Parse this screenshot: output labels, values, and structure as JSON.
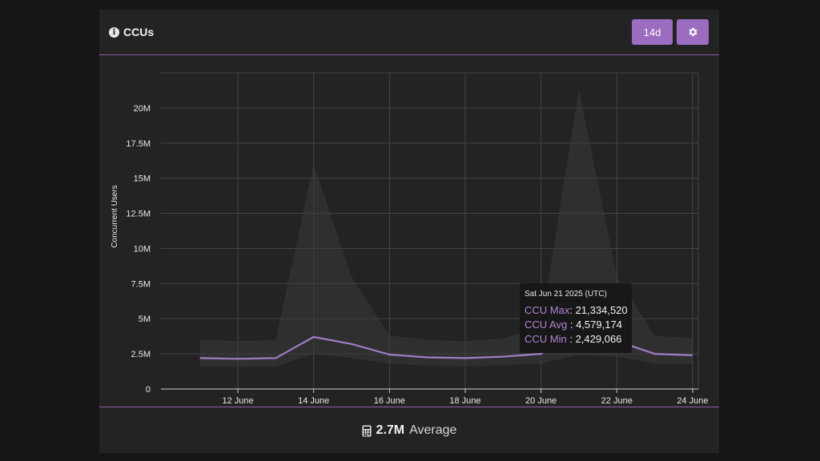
{
  "header": {
    "title": "CCUs",
    "range_label": "14d"
  },
  "footer": {
    "value": "2.7M",
    "label": "Average"
  },
  "tooltip": {
    "date": "Sat Jun 21 2025 (UTC)",
    "max_label": "CCU Max",
    "max_value": "21,334,520",
    "avg_label": "CCU Avg",
    "avg_value": "4,579,174",
    "min_label": "CCU Min",
    "min_value": "2,429,066"
  },
  "colors": {
    "accent": "#9b6cc0",
    "line": "#a07cc5",
    "band": "#3a3a3a",
    "background": "#232323"
  },
  "chart_data": {
    "type": "line",
    "ylabel": "Concurrent Users",
    "xlabel": "",
    "dates": [
      "2025-06-11",
      "2025-06-12",
      "2025-06-13",
      "2025-06-14",
      "2025-06-15",
      "2025-06-16",
      "2025-06-17",
      "2025-06-18",
      "2025-06-19",
      "2025-06-20",
      "2025-06-21",
      "2025-06-22",
      "2025-06-23",
      "2025-06-24"
    ],
    "x_tick_labels": [
      "12 June",
      "14 June",
      "16 June",
      "18 June",
      "20 June",
      "22 June",
      "24 June"
    ],
    "x_tick_dates": [
      "2025-06-12",
      "2025-06-14",
      "2025-06-16",
      "2025-06-18",
      "2025-06-20",
      "2025-06-22",
      "2025-06-24"
    ],
    "y_ticks": [
      0,
      2500000,
      5000000,
      7500000,
      10000000,
      12500000,
      15000000,
      17500000,
      20000000
    ],
    "y_tick_labels": [
      "0",
      "2.5M",
      "5M",
      "7.5M",
      "10M",
      "12.5M",
      "15M",
      "17.5M",
      "20M"
    ],
    "ylim": [
      0,
      22500000
    ],
    "grid": true,
    "series": [
      {
        "name": "CCU Avg",
        "values": [
          2200000,
          2150000,
          2200000,
          3700000,
          3200000,
          2450000,
          2250000,
          2200000,
          2300000,
          2500000,
          4579174,
          3400000,
          2500000,
          2400000
        ]
      },
      {
        "name": "CCU Max",
        "values": [
          3500000,
          3400000,
          3500000,
          16000000,
          8000000,
          3800000,
          3500000,
          3400000,
          3600000,
          4500000,
          21334520,
          8000000,
          3800000,
          3600000
        ]
      },
      {
        "name": "CCU Min",
        "values": [
          1600000,
          1550000,
          1600000,
          2500000,
          2200000,
          1800000,
          1650000,
          1600000,
          1700000,
          1800000,
          2429066,
          2300000,
          1800000,
          1750000
        ]
      }
    ],
    "highlight": {
      "date": "2025-06-21",
      "series": "CCU Avg",
      "value": 4579174
    }
  }
}
